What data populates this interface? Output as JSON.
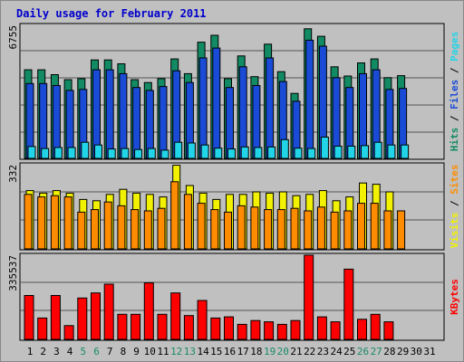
{
  "title": "Daily usage for February 2011",
  "colors": {
    "hits": "#128a64",
    "files": "#1a4bd6",
    "pages": "#22d4e8",
    "visits": "#f2f200",
    "sites": "#ff8c00",
    "kbytes": "#ff0000",
    "day_weekday": "#000000",
    "day_weekend": "#1a8a6a"
  },
  "chart_data": [
    {
      "type": "bar",
      "panel": "hits-files-pages",
      "ytick_label": "6755",
      "ylim": [
        0,
        6755
      ],
      "side_labels": [
        {
          "text": "Hits",
          "color": "#128a64"
        },
        {
          "text": " / ",
          "color": "#000000"
        },
        {
          "text": "Files",
          "color": "#1a4bd6"
        },
        {
          "text": " / ",
          "color": "#000000"
        },
        {
          "text": "Pages",
          "color": "#22d4e8"
        }
      ],
      "categories": [
        "1",
        "2",
        "3",
        "4",
        "5",
        "6",
        "7",
        "8",
        "9",
        "10",
        "11",
        "12",
        "13",
        "14",
        "15",
        "16",
        "17",
        "18",
        "19",
        "20",
        "21",
        "22",
        "23",
        "24",
        "25",
        "26",
        "27",
        "28",
        "29",
        "30",
        "31"
      ],
      "series": [
        {
          "name": "Hits",
          "values": [
            4500,
            4500,
            4250,
            4000,
            4050,
            5000,
            5000,
            4800,
            4000,
            3850,
            4050,
            5050,
            4300,
            5900,
            6250,
            4050,
            5200,
            4150,
            5800,
            4400,
            3300,
            6580,
            6200,
            4650,
            4180,
            4850,
            5050,
            4100,
            4200,
            null,
            null
          ]
        },
        {
          "name": "Files",
          "values": [
            3800,
            3800,
            3700,
            3450,
            3500,
            4500,
            4500,
            4300,
            3600,
            3450,
            3650,
            4450,
            3850,
            5100,
            5600,
            3600,
            4650,
            3700,
            5100,
            3900,
            2900,
            6000,
            5700,
            4100,
            3600,
            4300,
            4500,
            3500,
            3550,
            null,
            null
          ]
        },
        {
          "name": "Pages",
          "values": [
            600,
            500,
            550,
            550,
            820,
            680,
            480,
            500,
            450,
            500,
            420,
            820,
            780,
            680,
            520,
            480,
            580,
            550,
            580,
            950,
            520,
            500,
            1080,
            620,
            620,
            650,
            820,
            680,
            680,
            null,
            null
          ]
        }
      ]
    },
    {
      "type": "bar",
      "panel": "visits-sites",
      "ytick_label": "332",
      "ylim": [
        0,
        332
      ],
      "side_labels": [
        {
          "text": "Visits",
          "color": "#f2f200"
        },
        {
          "text": " / ",
          "color": "#000000"
        },
        {
          "text": "Sites",
          "color": "#ff8c00"
        }
      ],
      "categories": [
        "1",
        "2",
        "3",
        "4",
        "5",
        "6",
        "7",
        "8",
        "9",
        "10",
        "11",
        "12",
        "13",
        "14",
        "15",
        "16",
        "17",
        "18",
        "19",
        "20",
        "21",
        "22",
        "23",
        "24",
        "25",
        "26",
        "27",
        "28",
        "29",
        "30",
        "31"
      ],
      "series": [
        {
          "name": "Visits",
          "values": [
            230,
            220,
            230,
            220,
            195,
            190,
            215,
            235,
            220,
            215,
            205,
            330,
            250,
            220,
            195,
            215,
            215,
            225,
            220,
            225,
            210,
            215,
            230,
            190,
            205,
            260,
            255,
            225,
            null,
            null,
            null
          ]
        },
        {
          "name": "Sites",
          "values": [
            215,
            205,
            210,
            205,
            145,
            155,
            185,
            170,
            155,
            150,
            160,
            265,
            215,
            180,
            155,
            145,
            170,
            165,
            155,
            155,
            160,
            150,
            165,
            145,
            150,
            180,
            180,
            150,
            150,
            null,
            null
          ]
        }
      ]
    },
    {
      "type": "bar",
      "panel": "kbytes",
      "ytick_label": "335537",
      "ylim": [
        0,
        335537
      ],
      "side_labels": [
        {
          "text": "KBytes",
          "color": "#ff0000"
        }
      ],
      "categories": [
        "1",
        "2",
        "3",
        "4",
        "5",
        "6",
        "7",
        "8",
        "9",
        "10",
        "11",
        "12",
        "13",
        "14",
        "15",
        "16",
        "17",
        "18",
        "19",
        "20",
        "21",
        "22",
        "23",
        "24",
        "25",
        "26",
        "27",
        "28",
        "29",
        "30",
        "31"
      ],
      "series": [
        {
          "name": "KBytes",
          "values": [
            175000,
            85000,
            175000,
            55000,
            165000,
            185000,
            220000,
            100000,
            100000,
            225000,
            100000,
            185000,
            95000,
            155000,
            85000,
            90000,
            60000,
            75000,
            70000,
            60000,
            75000,
            335537,
            90000,
            70000,
            280000,
            80000,
            100000,
            70000,
            null,
            null,
            null
          ]
        }
      ]
    }
  ],
  "weekend_days": [
    "5",
    "6",
    "12",
    "13",
    "19",
    "20",
    "26",
    "27"
  ]
}
